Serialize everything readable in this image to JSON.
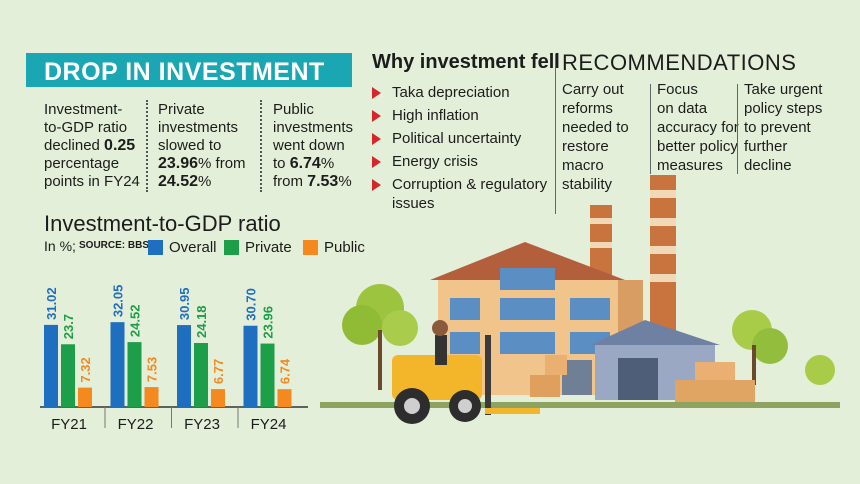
{
  "header": {
    "title": "DROP IN INVESTMENT"
  },
  "stats": [
    {
      "lines": [
        "Investment-",
        "to-GDP ratio"
      ],
      "line3_pre": "declined ",
      "line3_bold": "0.25",
      "lines_after": [
        "percentage",
        "points in FY24"
      ]
    },
    {
      "lines": [
        "Private",
        "investments",
        "slowed to"
      ],
      "v1": "23.96",
      "v1_suffix": "% from",
      "v2": "24.52",
      "v2_suffix": "%"
    },
    {
      "lines": [
        "Public",
        "investments",
        "went down"
      ],
      "v1_pre": "to ",
      "v1": "6.74",
      "v1_suffix": "%",
      "v2_pre": "from ",
      "v2": "7.53",
      "v2_suffix": "%"
    }
  ],
  "why": {
    "title": "Why investment fell",
    "items": [
      "Taka depreciation",
      "High inflation",
      "Political uncertainty",
      "Energy crisis",
      "Corruption & regulatory",
      "issues"
    ]
  },
  "recommendations": {
    "title": "RECOMMENDATIONS",
    "cols": [
      [
        "Carry out",
        "reforms",
        "needed to",
        "restore macro",
        "stability"
      ],
      [
        "Focus",
        "on data",
        "accuracy for",
        "better policy",
        "measures"
      ],
      [
        "Take urgent",
        "policy steps",
        "to prevent",
        "further",
        "decline"
      ]
    ]
  },
  "chart_data": {
    "type": "bar",
    "title": "Investment-to-GDP ratio",
    "unit": "In %;",
    "source": "SOURCE: BBS",
    "categories": [
      "FY21",
      "FY22",
      "FY23",
      "FY24"
    ],
    "series": [
      {
        "name": "Overall",
        "color": "#1f6fc0",
        "values": [
          31.02,
          32.05,
          30.95,
          30.7
        ],
        "labels": [
          "31.02",
          "32.05",
          "30.95",
          "30.70"
        ]
      },
      {
        "name": "Private",
        "color": "#1d9e48",
        "values": [
          23.7,
          24.52,
          24.18,
          23.96
        ],
        "labels": [
          "23.7",
          "24.52",
          "24.18",
          "23.96"
        ]
      },
      {
        "name": "Public",
        "color": "#f48a1f",
        "values": [
          7.32,
          7.53,
          6.77,
          6.74
        ],
        "labels": [
          "7.32",
          "7.53",
          "6.77",
          "6.74"
        ]
      }
    ],
    "ylim": [
      0,
      34
    ],
    "legend": "top"
  }
}
